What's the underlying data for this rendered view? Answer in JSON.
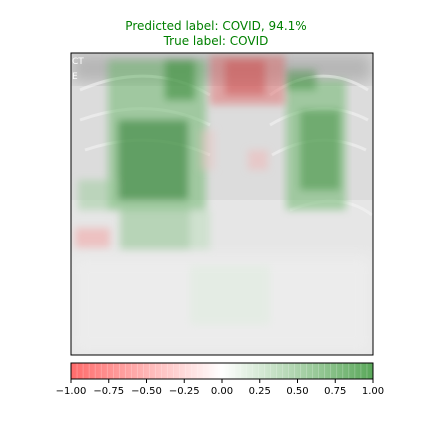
{
  "title": {
    "predicted": "Predicted label: COVID, 94.1%",
    "true_label": "True label: COVID",
    "color": "#008000"
  },
  "image_overlay_text": [
    "CT",
    "E"
  ],
  "colorbar": {
    "ticks": [
      "−1.00",
      "−0.75",
      "−0.50",
      "−0.25",
      "0.00",
      "0.25",
      "0.50",
      "0.75",
      "1.00"
    ],
    "negative_color": "#ff3b3b",
    "neutral_color": "#ffffff",
    "positive_color": "#2e8b2e"
  }
}
